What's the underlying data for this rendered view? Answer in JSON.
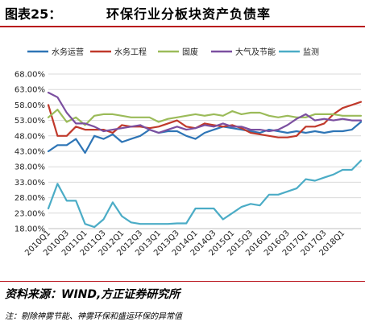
{
  "header": {
    "figure_label": "图表25：",
    "title": "环保行业分板块资产负债率"
  },
  "footer": {
    "source": "资料来源：WIND,方正证券研究所",
    "note": "注：剔除神雾节能、神雾环保和盛运环保的异常值"
  },
  "colors": {
    "title_rule": "#b9121b",
    "grid": "#d9d9d9"
  },
  "chart_data": {
    "type": "line",
    "ylim": [
      18,
      68
    ],
    "y_ticks": [
      "18.00%",
      "23.00%",
      "28.00%",
      "33.00%",
      "38.00%",
      "43.00%",
      "48.00%",
      "53.00%",
      "58.00%",
      "63.00%",
      "68.00%"
    ],
    "y_tick_values": [
      18,
      23,
      28,
      33,
      38,
      43,
      48,
      53,
      58,
      63,
      68
    ],
    "x": [
      "2010Q1",
      "2010Q2",
      "2010Q3",
      "2010Q4",
      "2011Q1",
      "2011Q2",
      "2011Q3",
      "2011Q4",
      "2012Q1",
      "2012Q2",
      "2012Q3",
      "2012Q4",
      "2013Q1",
      "2013Q2",
      "2013Q3",
      "2013Q4",
      "2014Q1",
      "2014Q2",
      "2014Q3",
      "2014Q4",
      "2015Q1",
      "2015Q2",
      "2015Q3",
      "2015Q4",
      "2016Q1",
      "2016Q2",
      "2016Q3",
      "2016Q4",
      "2017Q1",
      "2017Q2",
      "2017Q3",
      "2017Q4",
      "2018Q1",
      "2018Q2",
      "2018Q3"
    ],
    "x_tick_labels": [
      "2010Q1",
      "2010Q3",
      "2011Q1",
      "2011Q3",
      "2012Q1",
      "2012Q3",
      "2013Q1",
      "2013Q3",
      "2014Q1",
      "2014Q3",
      "2015Q1",
      "2015Q3",
      "2016Q1",
      "2016Q3",
      "2017Q1",
      "2017Q3",
      "2018Q1"
    ],
    "legend_position": "top",
    "series": [
      {
        "name": "水务运营",
        "color": "#2e75b6",
        "values": [
          43,
          45,
          45,
          47,
          42.5,
          48,
          47,
          48.5,
          46,
          47,
          48,
          50,
          49,
          49.5,
          49.5,
          48,
          47,
          49,
          50,
          51,
          50.5,
          50,
          49.5,
          49,
          50,
          49.5,
          49,
          49.5,
          49,
          49.5,
          49,
          49.5,
          49.5,
          50,
          52.5
        ]
      },
      {
        "name": "水务工程",
        "color": "#c0392b",
        "values": [
          58,
          48,
          48,
          51,
          50,
          50,
          50,
          49,
          51.5,
          51,
          51,
          50.5,
          51,
          52,
          53,
          51,
          50.5,
          52,
          51.5,
          51,
          51.5,
          50.5,
          49,
          48.5,
          48,
          47.5,
          47.5,
          48,
          51,
          51,
          52,
          55,
          57,
          58,
          59
        ]
      },
      {
        "name": "固废",
        "color": "#9bbb59",
        "values": [
          54,
          56.5,
          52.5,
          54,
          51.5,
          54.5,
          55,
          55,
          54.5,
          54,
          54,
          54,
          52.5,
          53.5,
          54,
          54.5,
          55,
          54.5,
          55,
          54.5,
          56,
          55,
          55.5,
          55.5,
          54.5,
          54,
          54.5,
          54,
          54,
          55,
          55,
          55,
          54.5,
          54.5,
          54.5
        ]
      },
      {
        "name": "大气及节能",
        "color": "#7b4fa0",
        "values": [
          62,
          60.5,
          55.5,
          52,
          52,
          51,
          49.5,
          50,
          50.5,
          51,
          51.5,
          50,
          49,
          50,
          51,
          50,
          50.5,
          51.5,
          51,
          52,
          51,
          51,
          50,
          50,
          49.5,
          50,
          51.5,
          53.5,
          55,
          53,
          53.5,
          53,
          53.5,
          53,
          53
        ]
      },
      {
        "name": "监测",
        "color": "#4bacc6",
        "values": [
          24.5,
          32.5,
          27,
          27,
          19.5,
          18.5,
          21,
          26.5,
          22,
          20,
          19.5,
          19.5,
          19.5,
          19.5,
          19.7,
          19.7,
          24.5,
          24.5,
          24.5,
          21,
          23,
          25,
          26,
          25.5,
          29,
          29,
          30,
          31,
          34,
          33.5,
          34.5,
          35.5,
          37,
          37,
          40
        ]
      }
    ]
  }
}
